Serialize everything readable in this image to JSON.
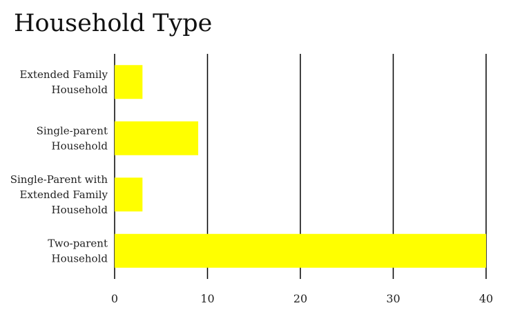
{
  "chart_data": {
    "type": "bar",
    "orientation": "horizontal",
    "title": "Household Type",
    "xlabel": "",
    "ylabel": "",
    "categories": [
      [
        "Extended Family",
        "Household"
      ],
      [
        "Single-parent",
        "Household"
      ],
      [
        "Single-Parent with",
        "Extended Family",
        "Household"
      ],
      [
        "Two-parent",
        "Household"
      ]
    ],
    "values": [
      3,
      9,
      3,
      40
    ],
    "xlim": [
      0,
      40
    ],
    "ticks": [
      "0",
      "10",
      "20",
      "30",
      "40"
    ],
    "grid": "vertical",
    "legend": "none",
    "bar_color": "#FFFF00",
    "grid_color": "#000000"
  }
}
